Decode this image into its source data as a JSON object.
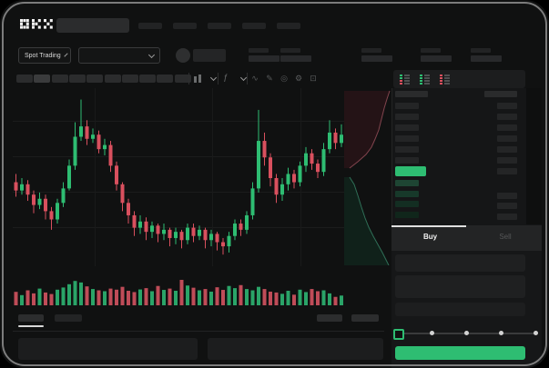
{
  "brand": "OKX",
  "header": {
    "nav_count": 5
  },
  "subheader": {
    "market_selector_label": "Spot Trading",
    "stats_count": 5
  },
  "chart_toolbar": {
    "timeframe_count": 10,
    "active_timeframe_index": 1,
    "tool_icons": [
      {
        "name": "line-style-icon",
        "glyph": "∿"
      },
      {
        "name": "draw-icon",
        "glyph": "✎"
      },
      {
        "name": "camera-icon",
        "glyph": "◎"
      },
      {
        "name": "settings-icon",
        "glyph": "⚙"
      },
      {
        "name": "fullscreen-icon",
        "glyph": "⊡"
      }
    ]
  },
  "orderbook": {
    "view_toggles": [
      {
        "name": "book-both-view",
        "rows": [
          "green",
          "green",
          "red",
          "red"
        ]
      },
      {
        "name": "book-bids-view",
        "rows": [
          "green",
          "green",
          "green",
          "green"
        ]
      },
      {
        "name": "book-asks-view",
        "rows": [
          "red",
          "red",
          "red",
          "red"
        ]
      }
    ],
    "has_header_row": true,
    "asks_rows": 6,
    "bids_rows": 4,
    "bids_right_rows": 3,
    "last_price_direction": "up"
  },
  "trade_panel": {
    "buy_tab": "Buy",
    "sell_tab": "Sell",
    "active_tab": "Buy",
    "field_count": 3,
    "slider": {
      "stops": 5,
      "active_stop": 0
    }
  },
  "bottom_bar": {
    "tab_count": 2,
    "active_tab_index": 0,
    "right_button_count": 2,
    "panel_count": 2
  },
  "colors": {
    "green": "#2ebd72",
    "red": "#d9505e",
    "volume_green": "#2aa468",
    "volume_red": "#bf4c58",
    "bid_row_tints": [
      "#1e4533",
      "#17392a",
      "#132e22",
      "#10261b"
    ],
    "depth_ask_fill": "#241316",
    "depth_ask_line": "#82444e",
    "depth_bid_fill": "#10211a",
    "depth_bid_line": "#2f6f57"
  },
  "chart_data": {
    "type": "candlestick",
    "title": "",
    "axes_labels_visible": false,
    "grid": "faint",
    "ylim": [
      20,
      100
    ],
    "candles_ohlc": [
      [
        58,
        62,
        51,
        54
      ],
      [
        54,
        60,
        52,
        57
      ],
      [
        57,
        59,
        49,
        52
      ],
      [
        52,
        54,
        43,
        47
      ],
      [
        47,
        53,
        45,
        50
      ],
      [
        50,
        52,
        40,
        44
      ],
      [
        44,
        46,
        35,
        40
      ],
      [
        40,
        50,
        38,
        48
      ],
      [
        48,
        58,
        46,
        55
      ],
      [
        55,
        69,
        54,
        66
      ],
      [
        66,
        87,
        64,
        80
      ],
      [
        80,
        98,
        78,
        85
      ],
      [
        85,
        88,
        76,
        79
      ],
      [
        79,
        84,
        77,
        81
      ],
      [
        81,
        83,
        72,
        74
      ],
      [
        74,
        79,
        71,
        76
      ],
      [
        76,
        78,
        63,
        66
      ],
      [
        66,
        68,
        54,
        57
      ],
      [
        57,
        58,
        44,
        48
      ],
      [
        48,
        50,
        38,
        42
      ],
      [
        42,
        44,
        32,
        36
      ],
      [
        36,
        42,
        33,
        39
      ],
      [
        39,
        41,
        30,
        34
      ],
      [
        34,
        39,
        31,
        37
      ],
      [
        37,
        38,
        29,
        33
      ],
      [
        33,
        38,
        30,
        35
      ],
      [
        35,
        36,
        27,
        31
      ],
      [
        31,
        36,
        28,
        34
      ],
      [
        34,
        35,
        26,
        30
      ],
      [
        30,
        38,
        28,
        36
      ],
      [
        36,
        38,
        29,
        32
      ],
      [
        32,
        37,
        30,
        35
      ],
      [
        35,
        36,
        26,
        30
      ],
      [
        30,
        35,
        27,
        33
      ],
      [
        33,
        34,
        25,
        29
      ],
      [
        29,
        31,
        23,
        27
      ],
      [
        27,
        34,
        24,
        32
      ],
      [
        32,
        40,
        30,
        38
      ],
      [
        38,
        40,
        32,
        35
      ],
      [
        35,
        44,
        33,
        42
      ],
      [
        42,
        58,
        40,
        55
      ],
      [
        55,
        93,
        53,
        78
      ],
      [
        78,
        82,
        66,
        70
      ],
      [
        70,
        72,
        56,
        60
      ],
      [
        60,
        62,
        48,
        52
      ],
      [
        52,
        60,
        49,
        57
      ],
      [
        57,
        65,
        54,
        62
      ],
      [
        62,
        64,
        55,
        58
      ],
      [
        58,
        68,
        56,
        66
      ],
      [
        66,
        75,
        63,
        72
      ],
      [
        72,
        74,
        64,
        67
      ],
      [
        67,
        69,
        60,
        63
      ],
      [
        63,
        77,
        61,
        74
      ],
      [
        74,
        88,
        72,
        82
      ],
      [
        82,
        84,
        74,
        77
      ],
      [
        77,
        86,
        75,
        81
      ]
    ],
    "volume": [
      45,
      30,
      52,
      38,
      60,
      42,
      35,
      55,
      65,
      80,
      95,
      88,
      70,
      58,
      52,
      48,
      60,
      55,
      68,
      50,
      44,
      56,
      62,
      48,
      72,
      54,
      60,
      50,
      100,
      74,
      64,
      52,
      58,
      46,
      66,
      54,
      72,
      62,
      76,
      58,
      52,
      68,
      58,
      46,
      42,
      36,
      50,
      32,
      55,
      44,
      58,
      48,
      52,
      38,
      22,
      28
    ],
    "depth_overlay": {
      "asks_line": [
        [
          50,
          3
        ],
        [
          47,
          12
        ],
        [
          44,
          22
        ],
        [
          41,
          34
        ],
        [
          38,
          46
        ],
        [
          34,
          56
        ],
        [
          30,
          65
        ],
        [
          24,
          73
        ],
        [
          15,
          81
        ],
        [
          6,
          88
        ]
      ],
      "bids_line": [
        [
          6,
          98
        ],
        [
          11,
          106
        ],
        [
          15,
          118
        ],
        [
          19,
          131
        ],
        [
          23,
          143
        ],
        [
          27,
          153
        ],
        [
          32,
          163
        ],
        [
          37,
          172
        ],
        [
          42,
          181
        ],
        [
          46,
          189
        ],
        [
          49,
          195
        ]
      ]
    }
  }
}
